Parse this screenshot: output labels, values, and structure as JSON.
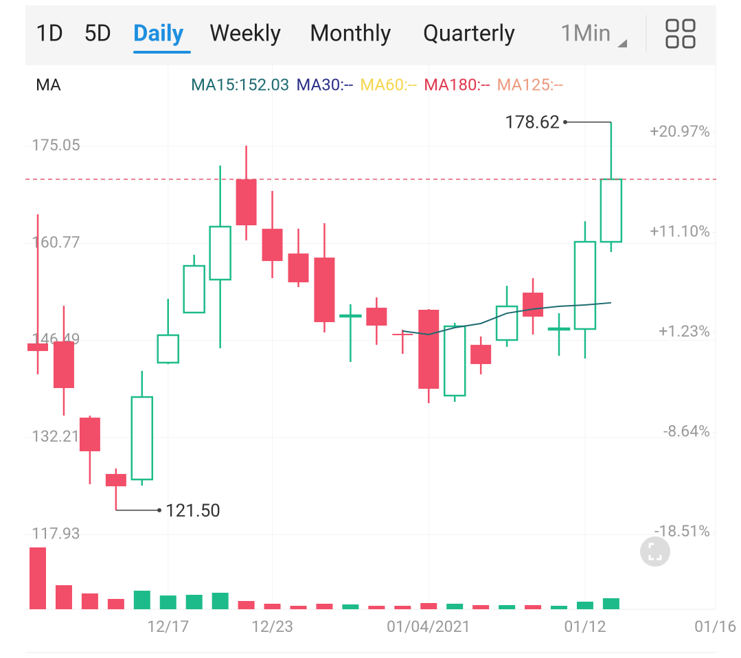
{
  "tabs": [
    "1D",
    "5D",
    "Daily",
    "Weekly",
    "Monthly",
    "Quarterly",
    "1Min"
  ],
  "active_tab": 2,
  "chart_data": {
    "type": "candlestick",
    "indicator_label": "MA",
    "categories": [
      null,
      null,
      null,
      null,
      null,
      "12/17",
      null,
      null,
      null,
      "12/23",
      null,
      null,
      null,
      null,
      null,
      "01/04/2021",
      null,
      null,
      null,
      null,
      null,
      "01/12",
      null,
      null,
      null,
      null,
      "01/16"
    ],
    "series": [
      {
        "up_color": "#1dbb8a",
        "down_color": "#f24e69",
        "open": [
          146.05,
          146.35,
          135.13,
          126.84,
          126.03,
          143.22,
          150.59,
          155.44,
          170.2,
          162.92,
          159.28,
          158.68,
          149.99,
          151.3,
          147.46,
          151.0,
          138.37,
          145.84,
          146.55,
          153.52,
          148.07,
          148.17,
          161.0,
          null,
          null,
          null,
          null
        ],
        "high": [
          165.05,
          151.6,
          135.43,
          127.65,
          142.0,
          152.61,
          159.08,
          172.22,
          175.15,
          168.48,
          162.92,
          163.73,
          151.81,
          152.82,
          148.07,
          151.1,
          149.08,
          147.06,
          154.53,
          155.65,
          150.49,
          164.03,
          178.62,
          null,
          null,
          null,
          null
        ],
        "low": [
          141.5,
          135.43,
          125.33,
          121.5,
          125.13,
          143.01,
          150.59,
          145.34,
          161.21,
          155.65,
          154.33,
          147.66,
          143.32,
          145.84,
          144.53,
          137.25,
          137.46,
          141.5,
          145.54,
          147.36,
          144.23,
          143.82,
          159.49,
          null,
          null,
          null,
          null
        ],
        "close": [
          144.93,
          139.48,
          130.18,
          125.03,
          138.16,
          147.26,
          157.46,
          163.23,
          163.43,
          158.17,
          155.04,
          149.18,
          150.19,
          148.67,
          147.26,
          139.38,
          148.57,
          143.01,
          151.5,
          149.99,
          148.27,
          161.0,
          170.2,
          null,
          null,
          null,
          null
        ],
        "volume": [
          90,
          35,
          23,
          15,
          27,
          20,
          21,
          24,
          12,
          8,
          5,
          8,
          7,
          5,
          5,
          9,
          8,
          6,
          6,
          6,
          5,
          11,
          16,
          null,
          null,
          null,
          null
        ]
      }
    ],
    "moving_averages": [
      {
        "label": "MA15:152.03",
        "color": "#1d6a70",
        "values": [
          null,
          null,
          null,
          null,
          null,
          null,
          null,
          null,
          null,
          null,
          null,
          null,
          null,
          null,
          147.87,
          147.36,
          148.37,
          148.98,
          150.49,
          151.1,
          151.5,
          151.71,
          152.03,
          null,
          null,
          null,
          null
        ]
      },
      {
        "label": "MA30:--",
        "color": "#2c2f86"
      },
      {
        "label": "MA60:--",
        "color": "#f4d64c"
      },
      {
        "label": "MA180:--",
        "color": "#e0384e"
      },
      {
        "label": "MA125:--",
        "color": "#ec9a7e"
      }
    ],
    "annotations": [
      {
        "value": 178.62,
        "label": "178.62"
      },
      {
        "value": 121.5,
        "label": "121.50"
      }
    ],
    "ylim": [
      116.74,
      180.41
    ],
    "yticks": [
      117.93,
      132.21,
      146.49,
      160.77,
      175.05
    ],
    "y2lim": [
      -19.53,
      23.21
    ],
    "y2ticks": [
      {
        "value": 20.97,
        "label": "+20.97%"
      },
      {
        "value": 11.1,
        "label": "+11.10%"
      },
      {
        "value": 1.23,
        "label": "+1.23%"
      },
      {
        "value": -8.64,
        "label": "-8.64%"
      },
      {
        "value": -18.51,
        "label": "-18.51%"
      }
    ],
    "volume_lim": [
      0,
      100
    ]
  }
}
